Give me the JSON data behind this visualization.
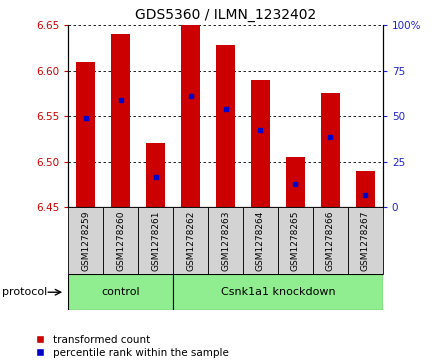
{
  "title": "GDS5360 / ILMN_1232402",
  "samples": [
    "GSM1278259",
    "GSM1278260",
    "GSM1278261",
    "GSM1278262",
    "GSM1278263",
    "GSM1278264",
    "GSM1278265",
    "GSM1278266",
    "GSM1278267"
  ],
  "bar_tops": [
    6.61,
    6.64,
    6.52,
    6.65,
    6.628,
    6.59,
    6.505,
    6.575,
    6.49
  ],
  "bar_bottom": 6.45,
  "blue_marker_y": [
    6.548,
    6.568,
    6.483,
    6.572,
    6.558,
    6.535,
    6.475,
    6.527,
    6.463
  ],
  "bar_color": "#cc0000",
  "blue_color": "#0000cc",
  "ylim": [
    6.45,
    6.65
  ],
  "y_ticks": [
    6.45,
    6.5,
    6.55,
    6.6,
    6.65
  ],
  "y2_ticks": [
    0,
    25,
    50,
    75,
    100
  ],
  "protocol_label": "protocol",
  "legend_items": [
    {
      "label": "transformed count",
      "color": "#cc0000"
    },
    {
      "label": "percentile rank within the sample",
      "color": "#0000cc"
    }
  ],
  "tick_label_color_left": "#cc0000",
  "tick_label_color_right": "#2222cc",
  "bar_width": 0.55,
  "sample_bg": "#d3d3d3",
  "green": "#90ee90",
  "control_count": 3,
  "knockdown_count": 6,
  "control_label": "control",
  "knockdown_label": "Csnk1a1 knockdown"
}
